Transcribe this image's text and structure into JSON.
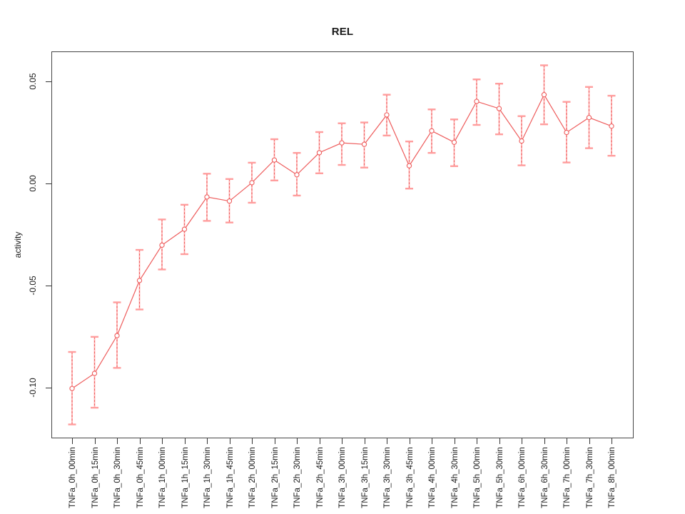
{
  "title": "REL",
  "axes": {
    "y_label": "activity",
    "y_tick_values": [
      0.05,
      0.0,
      -0.05,
      -0.1
    ]
  },
  "chart_data": {
    "type": "line",
    "title": "REL",
    "xlabel": "",
    "ylabel": "activity",
    "ylim": [
      -0.122,
      0.06
    ],
    "grid": "vertical dotted gridline at every category; horizontal dotted line at y=0",
    "legend": "none",
    "point_style": "open circles with error bars (confidence intervals)",
    "colors": {
      "series": "#ee5c5c",
      "error_bar_caps": "#ff9d9d",
      "error_bar_fill": "#ffb3b3",
      "grid": "#d9d9d9"
    },
    "categories": [
      "TNFa_0h_00min",
      "TNFa_0h_15min",
      "TNFa_0h_30min",
      "TNFa_0h_45min",
      "TNFa_1h_00min",
      "TNFa_1h_15min",
      "TNFa_1h_30min",
      "TNFa_1h_45min",
      "TNFa_2h_00min",
      "TNFa_2h_15min",
      "TNFa_2h_30min",
      "TNFa_2h_45min",
      "TNFa_3h_00min",
      "TNFa_3h_15min",
      "TNFa_3h_30min",
      "TNFa_3h_45min",
      "TNFa_4h_00min",
      "TNFa_4h_30min",
      "TNFa_5h_00min",
      "TNFa_5h_30min",
      "TNFa_6h_00min",
      "TNFa_6h_30min",
      "TNFa_7h_00min",
      "TNFa_7h_30min",
      "TNFa_8h_00min"
    ],
    "series": [
      {
        "name": "REL activity",
        "values": [
          -0.1006,
          -0.0932,
          -0.0747,
          -0.0477,
          -0.0304,
          -0.0226,
          -0.0068,
          -0.0088,
          0.0002,
          0.0113,
          0.0041,
          0.0149,
          0.0197,
          0.019,
          0.0334,
          0.0085,
          0.0256,
          0.02,
          0.04,
          0.0365,
          0.0206,
          0.0433,
          0.0248,
          0.0321,
          0.0279
        ],
        "ci_lower": [
          -0.1182,
          -0.11,
          -0.0905,
          -0.0619,
          -0.0423,
          -0.0348,
          -0.0185,
          -0.0193,
          -0.0096,
          0.0013,
          -0.0061,
          0.0048,
          0.0089,
          0.0076,
          0.0233,
          -0.0027,
          0.0148,
          0.0083,
          0.0285,
          0.0239,
          0.0087,
          0.0288,
          0.0101,
          0.0171,
          0.0134
        ],
        "ci_upper": [
          -0.0827,
          -0.0753,
          -0.0584,
          -0.0327,
          -0.0178,
          -0.0106,
          0.0046,
          0.002,
          0.01,
          0.0215,
          0.0148,
          0.025,
          0.0293,
          0.0297,
          0.0433,
          0.0204,
          0.0361,
          0.0312,
          0.0508,
          0.0487,
          0.0328,
          0.0577,
          0.0398,
          0.0471,
          0.0428
        ]
      }
    ]
  }
}
